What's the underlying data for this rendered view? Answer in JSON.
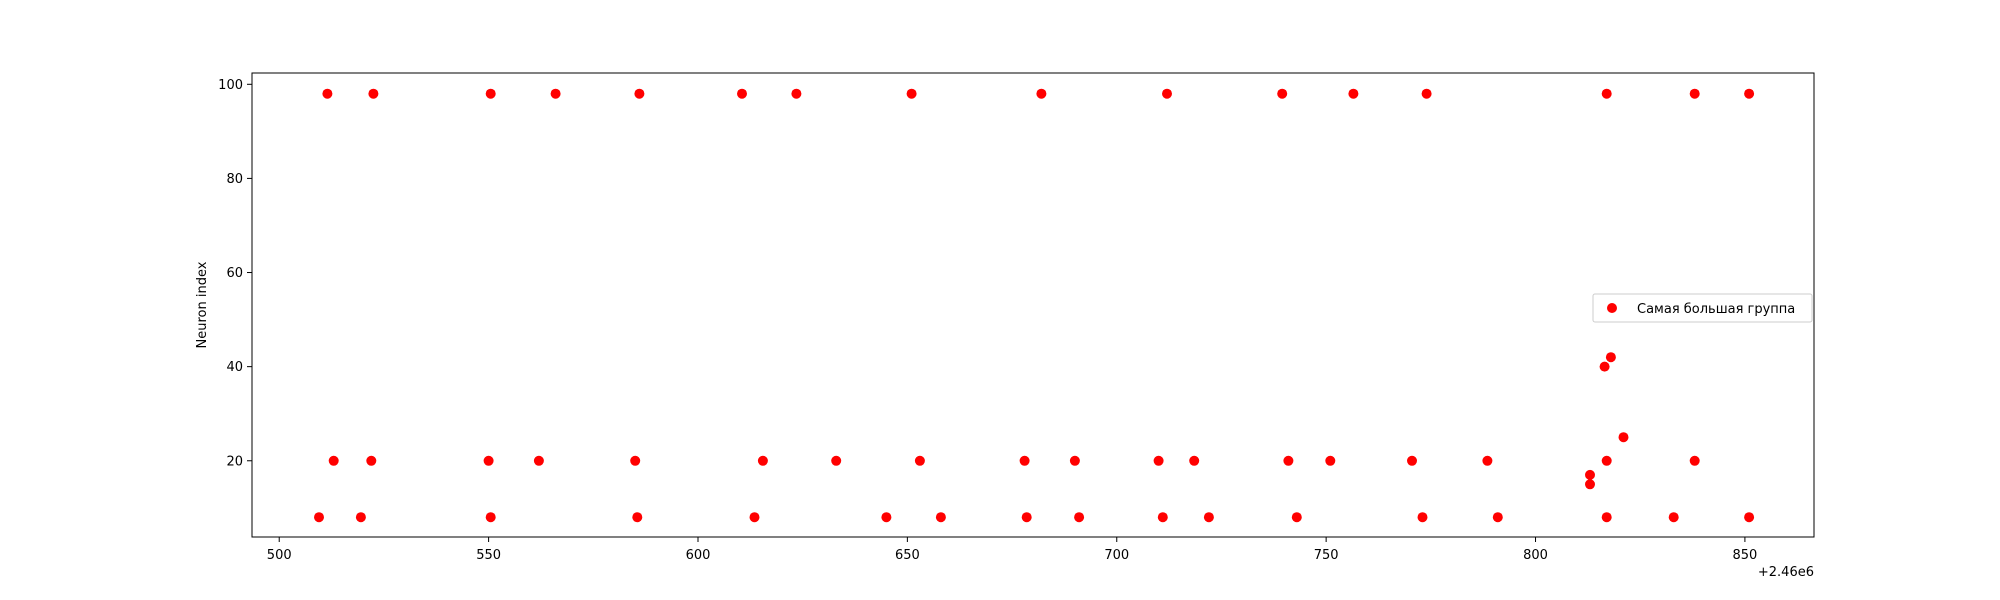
{
  "chart_data": {
    "type": "scatter",
    "title": "",
    "xlabel": "",
    "ylabel": "Neuron index",
    "x_offset_label": "+2.46e6",
    "xlim": [
      2460493.5,
      2460866.5
    ],
    "ylim": [
      3.8,
      102.4
    ],
    "xticks": [
      2460500,
      2460550,
      2460600,
      2460650,
      2460700,
      2460750,
      2460800,
      2460850
    ],
    "xtick_labels": [
      "500",
      "550",
      "600",
      "650",
      "700",
      "750",
      "800",
      "850"
    ],
    "yticks": [
      20,
      40,
      60,
      80,
      100
    ],
    "ytick_labels": [
      "20",
      "40",
      "60",
      "80",
      "100"
    ],
    "grid": false,
    "legend_position": "center-right",
    "series": [
      {
        "name": "Самая большая группа",
        "color": "#ff0000",
        "points": [
          [
            2460511.5,
            98
          ],
          [
            2460522.5,
            98
          ],
          [
            2460550.5,
            98
          ],
          [
            2460566.0,
            98
          ],
          [
            2460586.0,
            98
          ],
          [
            2460610.5,
            98
          ],
          [
            2460623.5,
            98
          ],
          [
            2460651.0,
            98
          ],
          [
            2460682.0,
            98
          ],
          [
            2460712.0,
            98
          ],
          [
            2460739.5,
            98
          ],
          [
            2460756.5,
            98
          ],
          [
            2460774.0,
            98
          ],
          [
            2460817.0,
            98
          ],
          [
            2460838.0,
            98
          ],
          [
            2460851.0,
            98
          ],
          [
            2460513.0,
            20
          ],
          [
            2460522.0,
            20
          ],
          [
            2460550.0,
            20
          ],
          [
            2460562.0,
            20
          ],
          [
            2460585.0,
            20
          ],
          [
            2460615.5,
            20
          ],
          [
            2460633.0,
            20
          ],
          [
            2460653.0,
            20
          ],
          [
            2460678.0,
            20
          ],
          [
            2460690.0,
            20
          ],
          [
            2460710.0,
            20
          ],
          [
            2460718.5,
            20
          ],
          [
            2460741.0,
            20
          ],
          [
            2460751.0,
            20
          ],
          [
            2460770.5,
            20
          ],
          [
            2460788.5,
            20
          ],
          [
            2460817.0,
            20
          ],
          [
            2460838.0,
            20
          ],
          [
            2460509.5,
            8
          ],
          [
            2460519.5,
            8
          ],
          [
            2460550.5,
            8
          ],
          [
            2460585.5,
            8
          ],
          [
            2460613.5,
            8
          ],
          [
            2460645.0,
            8
          ],
          [
            2460658.0,
            8
          ],
          [
            2460678.5,
            8
          ],
          [
            2460691.0,
            8
          ],
          [
            2460711.0,
            8
          ],
          [
            2460722.0,
            8
          ],
          [
            2460743.0,
            8
          ],
          [
            2460773.0,
            8
          ],
          [
            2460791.0,
            8
          ],
          [
            2460817.0,
            8
          ],
          [
            2460833.0,
            8
          ],
          [
            2460851.0,
            8
          ],
          [
            2460813.0,
            17
          ],
          [
            2460813.0,
            15
          ],
          [
            2460816.5,
            40
          ],
          [
            2460818.0,
            42
          ],
          [
            2460821.0,
            25
          ]
        ]
      }
    ]
  }
}
